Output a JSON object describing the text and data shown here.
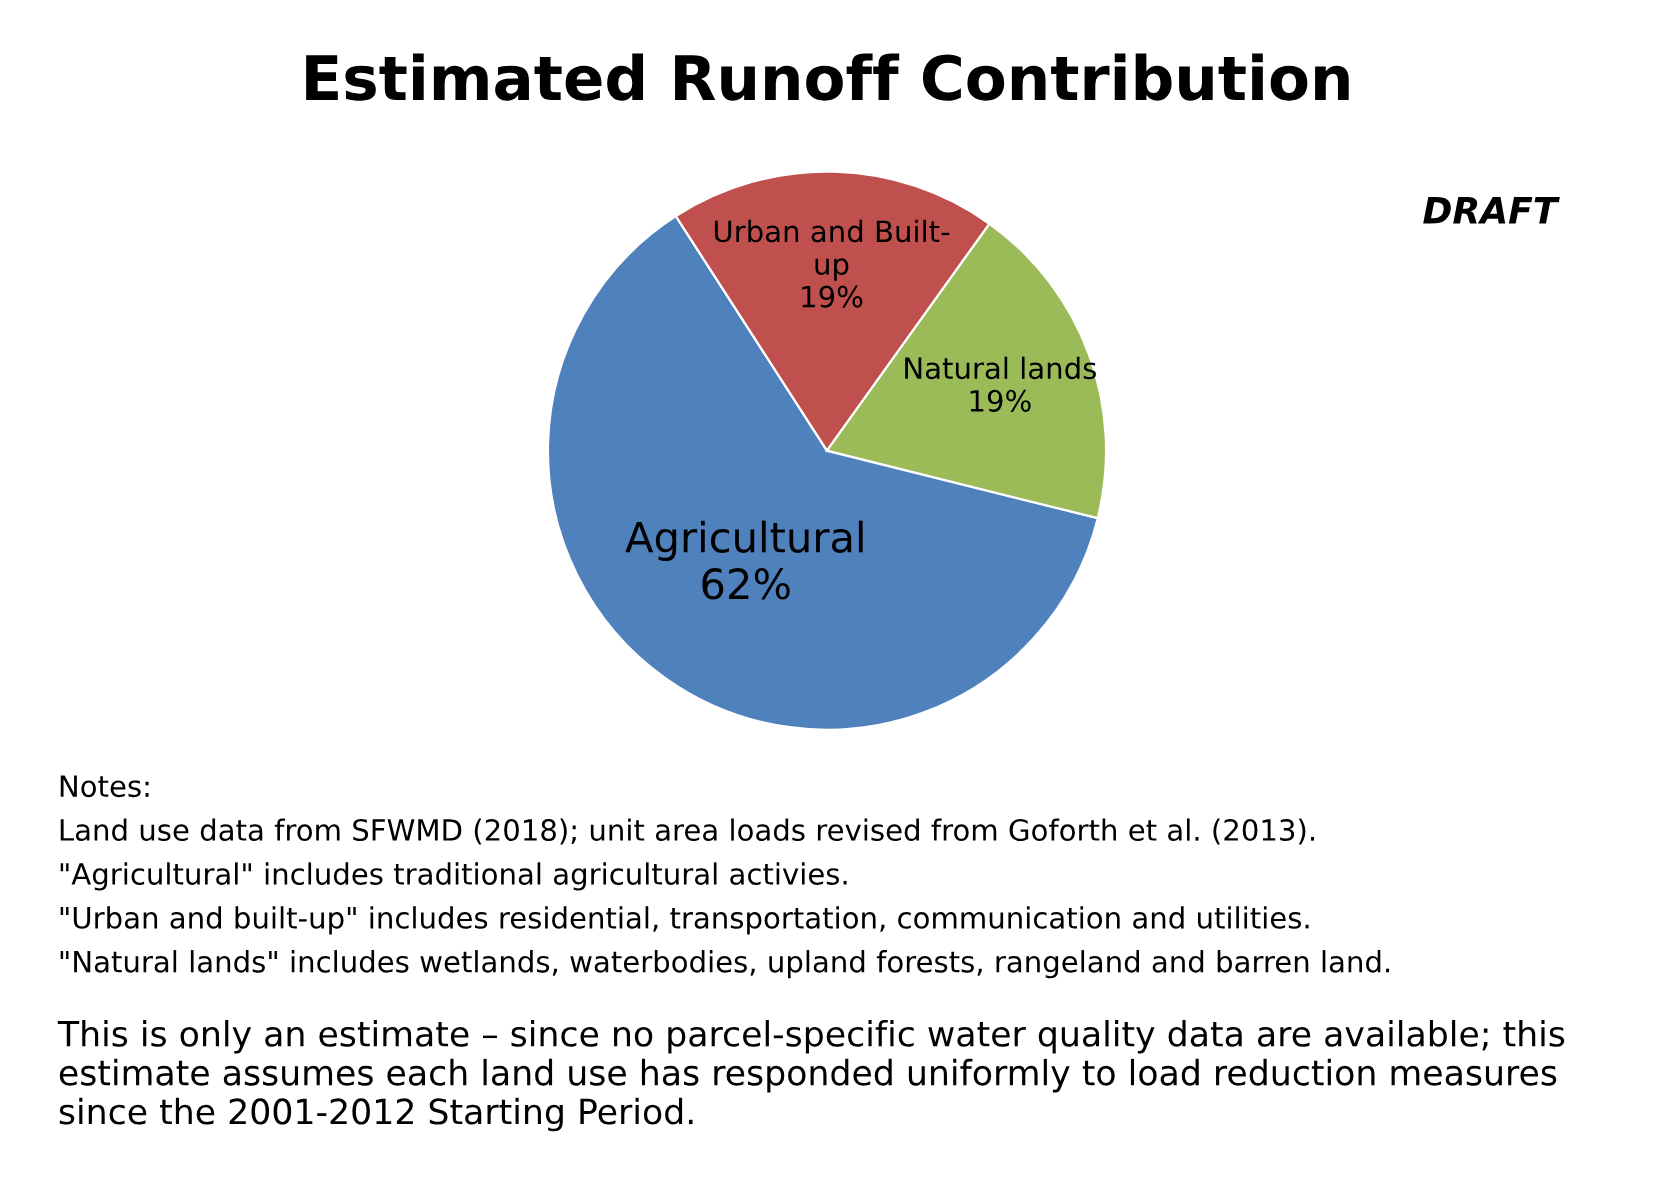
{
  "chart_data": {
    "type": "pie",
    "title": "Estimated Runoff Contribution",
    "categories": [
      "Agricultural",
      "Urban and Built-up",
      "Natural lands"
    ],
    "values": [
      62,
      19,
      19
    ],
    "colors": [
      "#4f81bd",
      "#c0504d",
      "#9bbb59"
    ],
    "value_labels": [
      "62%",
      "19%",
      "19%"
    ],
    "annotations": [
      "DRAFT",
      "Notes:",
      "Land use data from SFWMD (2018); unit area loads revised from Goforth et al. (2013).",
      "\"Agricultural\" includes traditional agricultural activies.",
      "\"Urban and built-up\" includes residential, transportation, communication and utilities.",
      "\"Natural lands\" includes wetlands, waterbodies, upland forests, rangeland and barren land.",
      "This is only an estimate – since no parcel-specific water quality data are available; this estimate assumes each land use has responded uniformly to load reduction measures since the 2001-2012 Starting Period."
    ],
    "legend": false
  }
}
